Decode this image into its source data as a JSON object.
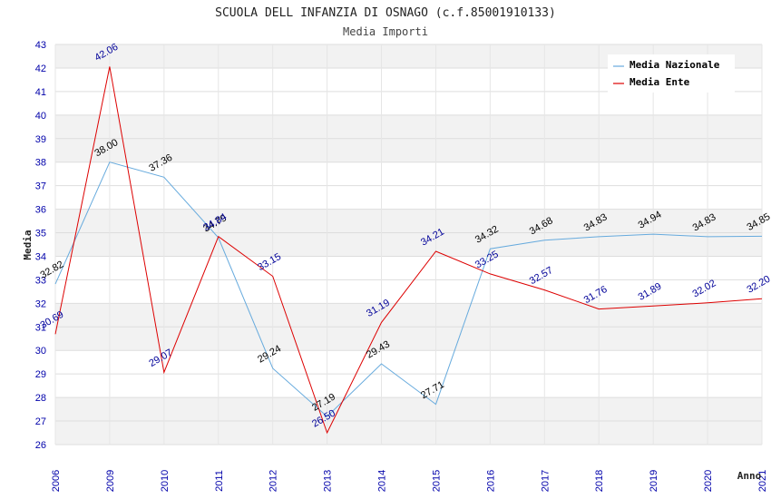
{
  "chart_data": {
    "type": "line",
    "title": "SCUOLA DELL INFANZIA DI OSNAGO (c.f.85001910133)",
    "subtitle": "Media Importi",
    "xlabel": "Anno",
    "ylabel": "Media",
    "ylim": [
      26,
      43
    ],
    "yticks": [
      "26",
      "27",
      "28",
      "29",
      "30",
      "31",
      "32",
      "33",
      "34",
      "35",
      "36",
      "37",
      "38",
      "39",
      "40",
      "41",
      "42",
      "43"
    ],
    "categories": [
      "2006",
      "2009",
      "2010",
      "2011",
      "2012",
      "2013",
      "2014",
      "2015",
      "2016",
      "2017",
      "2018",
      "2019",
      "2020",
      "2021"
    ],
    "grid": "horizontal bands",
    "legend_position": "top-right",
    "series": [
      {
        "name": "Media Nazionale",
        "color": "#66aadd",
        "label_color": "#000000",
        "values": [
          32.82,
          38.0,
          37.36,
          34.79,
          29.24,
          27.19,
          29.43,
          27.71,
          34.32,
          34.68,
          34.83,
          34.94,
          34.83,
          34.85
        ],
        "labels": [
          "32.82",
          "38.00",
          "37.36",
          "34.79",
          "29.24",
          "27.19",
          "29.43",
          "27.71",
          "34.32",
          "34.68",
          "34.83",
          "34.94",
          "34.83",
          "34.85"
        ]
      },
      {
        "name": "Media Ente",
        "color": "#dd0000",
        "label_color": "#000099",
        "values": [
          30.69,
          42.06,
          29.07,
          34.84,
          33.15,
          26.5,
          31.19,
          34.21,
          33.25,
          32.57,
          31.76,
          31.89,
          32.02,
          32.2
        ],
        "labels": [
          "30.69",
          "42.06",
          "29.07",
          "34.84",
          "33.15",
          "26.50",
          "31.19",
          "34.21",
          "33.25",
          "32.57",
          "31.76",
          "31.89",
          "32.02",
          "32.20"
        ]
      }
    ]
  }
}
